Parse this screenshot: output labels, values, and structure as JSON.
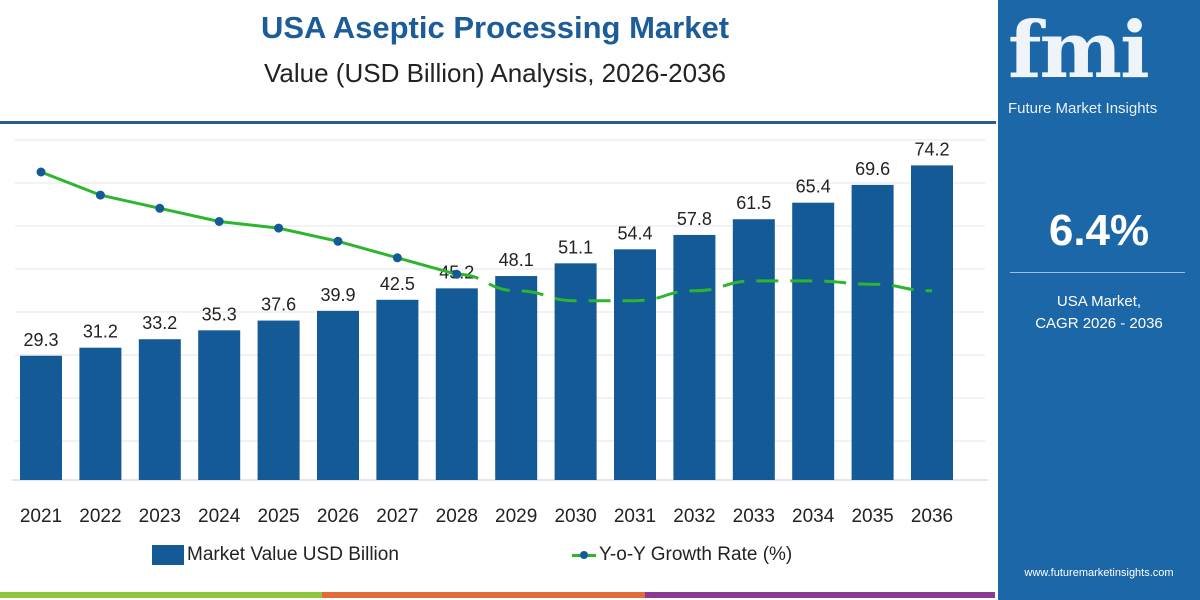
{
  "header": {
    "title": "USA Aseptic Processing Market",
    "subtitle": "Value (USD Billion) Analysis, 2026-2036"
  },
  "panel": {
    "logo_text": "fmi",
    "logo_subtitle": "Future Market Insights",
    "cagr_value": "6.4%",
    "label_line1": "USA Market,",
    "label_line2": "CAGR 2026 - 2036",
    "url": "www.futuremarketinsights.com"
  },
  "colors": {
    "bar": "#135a96",
    "line": "#2db52d",
    "marker": "#135a96",
    "title": "#1c5c99",
    "panel": "#1c67a8"
  },
  "chart_data": {
    "type": "bar+line",
    "categories": [
      "2021",
      "2022",
      "2023",
      "2024",
      "2025",
      "2026",
      "2027",
      "2028",
      "2029",
      "2030",
      "2031",
      "2032",
      "2033",
      "2034",
      "2035",
      "2036"
    ],
    "series": [
      {
        "name": "Market Value USD Billion",
        "type": "bar",
        "values": [
          29.3,
          31.2,
          33.2,
          35.3,
          37.6,
          39.9,
          42.5,
          45.2,
          48.1,
          51.1,
          54.4,
          57.8,
          61.5,
          65.4,
          69.6,
          74.2
        ]
      },
      {
        "name": "Y-o-Y Growth Rate (%)",
        "type": "line",
        "values_estimated": [
          7.9,
          7.2,
          6.8,
          6.4,
          6.2,
          5.8,
          5.3,
          4.8,
          4.3,
          4.0,
          4.0,
          4.3,
          4.6,
          4.6,
          4.5,
          4.3
        ],
        "solid_through": "2028",
        "dashed_after": "2028"
      }
    ],
    "grid": "horizontal",
    "legend": "bottom"
  },
  "legend": {
    "bar_label": "Market Value USD Billion",
    "line_label": "Y-o-Y Growth Rate (%)"
  }
}
